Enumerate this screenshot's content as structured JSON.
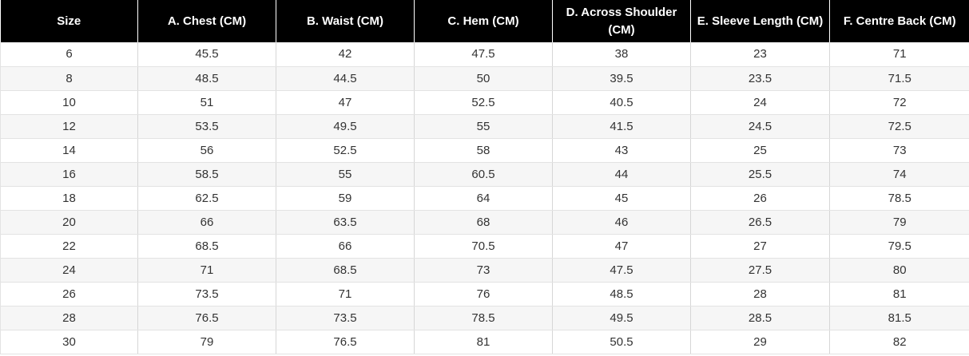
{
  "table": {
    "headers": [
      "Size",
      "A. Chest (CM)",
      "B. Waist (CM)",
      "C. Hem (CM)",
      "D. Across Shoulder (CM)",
      "E. Sleeve Length (CM)",
      "F. Centre Back (CM)"
    ],
    "rows": [
      [
        "6",
        "45.5",
        "42",
        "47.5",
        "38",
        "23",
        "71"
      ],
      [
        "8",
        "48.5",
        "44.5",
        "50",
        "39.5",
        "23.5",
        "71.5"
      ],
      [
        "10",
        "51",
        "47",
        "52.5",
        "40.5",
        "24",
        "72"
      ],
      [
        "12",
        "53.5",
        "49.5",
        "55",
        "41.5",
        "24.5",
        "72.5"
      ],
      [
        "14",
        "56",
        "52.5",
        "58",
        "43",
        "25",
        "73"
      ],
      [
        "16",
        "58.5",
        "55",
        "60.5",
        "44",
        "25.5",
        "74"
      ],
      [
        "18",
        "62.5",
        "59",
        "64",
        "45",
        "26",
        "78.5"
      ],
      [
        "20",
        "66",
        "63.5",
        "68",
        "46",
        "26.5",
        "79"
      ],
      [
        "22",
        "68.5",
        "66",
        "70.5",
        "47",
        "27",
        "79.5"
      ],
      [
        "24",
        "71",
        "68.5",
        "73",
        "47.5",
        "27.5",
        "80"
      ],
      [
        "26",
        "73.5",
        "71",
        "76",
        "48.5",
        "28",
        "81"
      ],
      [
        "28",
        "76.5",
        "73.5",
        "78.5",
        "49.5",
        "28.5",
        "81.5"
      ],
      [
        "30",
        "79",
        "76.5",
        "81",
        "50.5",
        "29",
        "82"
      ]
    ]
  },
  "colors": {
    "header_background": "#000000",
    "header_text": "#ffffff",
    "row_alt_background": "#f6f6f6",
    "cell_text": "#333333"
  }
}
